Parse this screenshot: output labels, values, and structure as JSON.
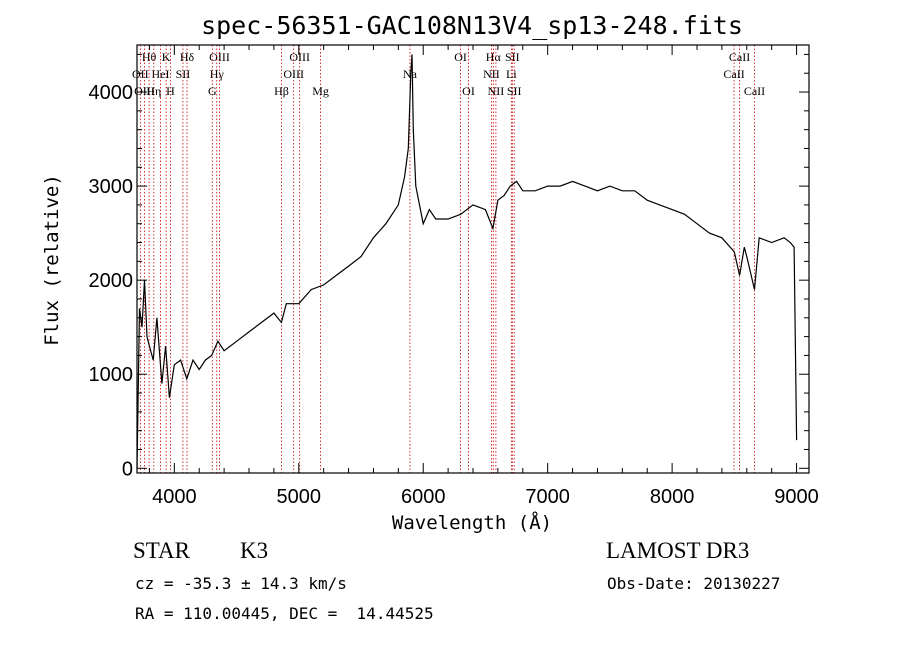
{
  "chart_data": {
    "type": "line",
    "title": "spec-56351-GAC108N13V4_sp13-248.fits",
    "xlabel": "Wavelength (Å)",
    "ylabel": "Flux (relative)",
    "xlim": [
      3700,
      9100
    ],
    "ylim": [
      -50,
      4500
    ],
    "xticks": [
      4000,
      5000,
      6000,
      7000,
      8000,
      9000
    ],
    "yticks": [
      0,
      1000,
      2000,
      3000,
      4000
    ],
    "series": [
      {
        "name": "spectrum",
        "x": [
          3700,
          3720,
          3740,
          3760,
          3780,
          3800,
          3830,
          3860,
          3900,
          3930,
          3960,
          4000,
          4050,
          4100,
          4150,
          4200,
          4250,
          4300,
          4350,
          4400,
          4500,
          4600,
          4700,
          4800,
          4860,
          4900,
          5000,
          5100,
          5200,
          5300,
          5400,
          5500,
          5600,
          5700,
          5800,
          5850,
          5880,
          5900,
          5910,
          5920,
          5940,
          5970,
          6000,
          6050,
          6100,
          6200,
          6300,
          6400,
          6500,
          6560,
          6600,
          6650,
          6700,
          6750,
          6800,
          6900,
          7000,
          7100,
          7200,
          7300,
          7400,
          7500,
          7600,
          7700,
          7800,
          7900,
          8000,
          8100,
          8200,
          8300,
          8400,
          8500,
          8542,
          8580,
          8600,
          8662,
          8700,
          8800,
          8900,
          8950,
          8980,
          9000
        ],
        "y": [
          0,
          1700,
          1500,
          2000,
          1400,
          1300,
          1150,
          1600,
          900,
          1300,
          750,
          1100,
          1150,
          950,
          1150,
          1050,
          1150,
          1200,
          1350,
          1250,
          1350,
          1450,
          1550,
          1650,
          1550,
          1750,
          1750,
          1900,
          1950,
          2050,
          2150,
          2250,
          2450,
          2600,
          2800,
          3100,
          3400,
          4200,
          4400,
          3600,
          3000,
          2800,
          2600,
          2750,
          2650,
          2650,
          2700,
          2800,
          2750,
          2550,
          2850,
          2900,
          3000,
          3050,
          2950,
          2950,
          3000,
          3000,
          3050,
          3000,
          2950,
          3000,
          2950,
          2950,
          2850,
          2800,
          2750,
          2700,
          2600,
          2500,
          2450,
          2300,
          2050,
          2350,
          2250,
          1900,
          2450,
          2400,
          2450,
          2400,
          2350,
          300
        ]
      }
    ],
    "lines": [
      {
        "label": "Hθ",
        "x": 3797,
        "row": 1
      },
      {
        "label": "OII",
        "x": 3727,
        "row": 2
      },
      {
        "label": "OIII",
        "x": 3760,
        "row": 3
      },
      {
        "label": "K",
        "x": 3934,
        "row": 1
      },
      {
        "label": "HeI",
        "x": 3889,
        "row": 2
      },
      {
        "label": "Hη",
        "x": 3835,
        "row": 3
      },
      {
        "label": "H",
        "x": 3969,
        "row": 3
      },
      {
        "label": "Hδ",
        "x": 4102,
        "row": 1
      },
      {
        "label": "SII",
        "x": 4069,
        "row": 2
      },
      {
        "label": "OIII",
        "x": 4363,
        "row": 1
      },
      {
        "label": "Hγ",
        "x": 4341,
        "row": 2
      },
      {
        "label": "G",
        "x": 4305,
        "row": 3
      },
      {
        "label": "OIII",
        "x": 5007,
        "row": 1
      },
      {
        "label": "OIII",
        "x": 4959,
        "row": 2
      },
      {
        "label": "Hβ",
        "x": 4861,
        "row": 3
      },
      {
        "label": "Mg",
        "x": 5175,
        "row": 3
      },
      {
        "label": "Na",
        "x": 5893,
        "row": 2
      },
      {
        "label": "OI",
        "x": 6300,
        "row": 1
      },
      {
        "label": "OI",
        "x": 6364,
        "row": 3
      },
      {
        "label": "Hα",
        "x": 6563,
        "row": 1
      },
      {
        "label": "SII",
        "x": 6716,
        "row": 1
      },
      {
        "label": "NII",
        "x": 6548,
        "row": 2
      },
      {
        "label": "Li",
        "x": 6708,
        "row": 2
      },
      {
        "label": "NII",
        "x": 6584,
        "row": 3
      },
      {
        "label": "SII",
        "x": 6731,
        "row": 3
      },
      {
        "label": "CaII",
        "x": 8542,
        "row": 1
      },
      {
        "label": "CaII",
        "x": 8498,
        "row": 2
      },
      {
        "label": "CaII",
        "x": 8662,
        "row": 3
      }
    ]
  },
  "info": {
    "object_type": "STAR",
    "subclass": "K3",
    "survey": "LAMOST DR3",
    "velocity": "cz = -35.3 ± 14.3 km/s",
    "obs_date": "Obs-Date: 20130227",
    "coords": "RA = 110.00445, DEC =  14.44525"
  }
}
